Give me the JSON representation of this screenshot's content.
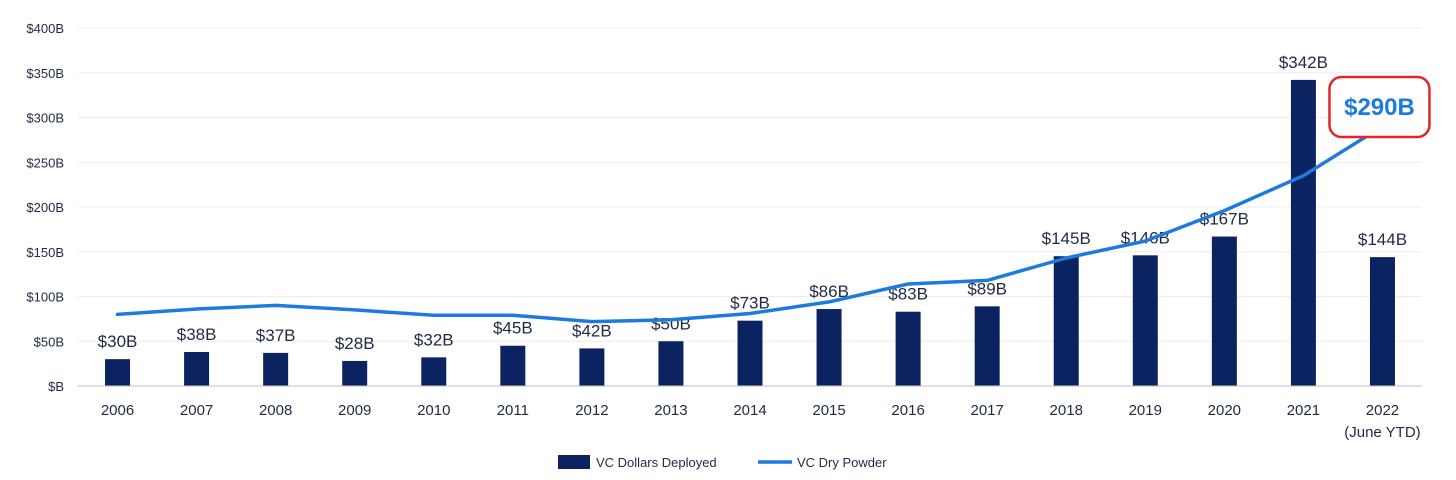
{
  "chart_data": {
    "type": "bar",
    "categories": [
      "2006",
      "2007",
      "2008",
      "2009",
      "2010",
      "2011",
      "2012",
      "2013",
      "2014",
      "2015",
      "2016",
      "2017",
      "2018",
      "2019",
      "2020",
      "2021",
      "2022"
    ],
    "category_sublabels": {
      "2022": "(June YTD)"
    },
    "series": [
      {
        "name": "VC Dollars Deployed",
        "type": "bar",
        "color": "#0b2461",
        "values": [
          30,
          38,
          37,
          28,
          32,
          45,
          42,
          50,
          73,
          86,
          83,
          89,
          145,
          146,
          167,
          342,
          144
        ],
        "labels": [
          "$30B",
          "$38B",
          "$37B",
          "$28B",
          "$32B",
          "$45B",
          "$42B",
          "$50B",
          "$73B",
          "$86B",
          "$83B",
          "$89B",
          "$145B",
          "$146B",
          "$167B",
          "$342B",
          "$144B"
        ]
      },
      {
        "name": "VC Dry Powder",
        "type": "line",
        "color": "#1f7ae0",
        "values": [
          80,
          86,
          90,
          85,
          79,
          79,
          72,
          74,
          81,
          94,
          114,
          118,
          143,
          162,
          196,
          235,
          290
        ]
      }
    ],
    "annotation": {
      "text": "$290B",
      "category": "2022",
      "border_color": "#e0252b",
      "text_color": "#1f7ae0"
    },
    "y_ticks": [
      "$B",
      "$50B",
      "$100B",
      "$150B",
      "$200B",
      "$250B",
      "$300B",
      "$350B",
      "$400B"
    ],
    "ylim": [
      0,
      400
    ],
    "grid": true,
    "legend_position": "bottom-center",
    "title": "",
    "xlabel": "",
    "ylabel": ""
  }
}
